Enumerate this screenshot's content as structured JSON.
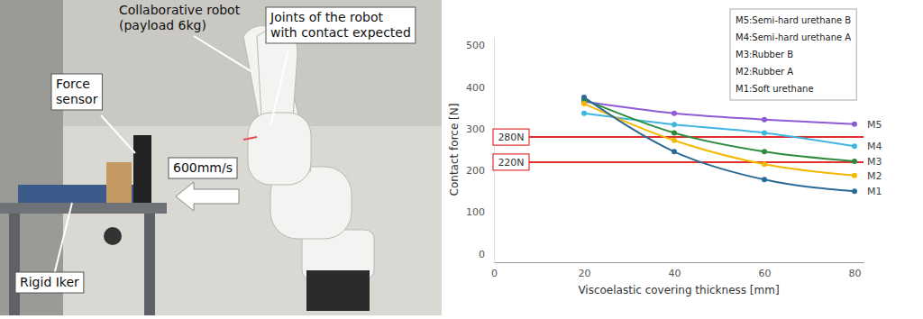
{
  "photo": {
    "annotations": [
      {
        "lines": [
          "Collaborative robot",
          "(payload 6kg)"
        ]
      },
      {
        "lines": [
          "Joints of the robot",
          "with contact expected"
        ]
      },
      {
        "lines": [
          "Force",
          "sensor"
        ]
      },
      {
        "lines": [
          "600mm/s"
        ]
      },
      {
        "lines": [
          "Rigid Iker"
        ]
      }
    ]
  },
  "chart_data": {
    "type": "line",
    "x_label": "Viscoelastic covering thickness [mm]",
    "y_label": "Contact force [N]",
    "x": [
      20,
      40,
      60,
      80
    ],
    "xlim": [
      0,
      82
    ],
    "xticks": [
      0,
      20,
      40,
      60,
      80
    ],
    "ylim": [
      -20,
      520
    ],
    "yticks": [
      0,
      100,
      200,
      300,
      400,
      500
    ],
    "grid": false,
    "legend": "upper right",
    "marker": "circle",
    "line_style": "solid",
    "series": [
      {
        "name": "M5:Semi-hard urethane B",
        "label": "M5",
        "color": "#8e5bd6",
        "values": [
          365,
          337,
          322,
          311
        ]
      },
      {
        "name": "M4:Semi-hard urethane A",
        "label": "M4",
        "color": "#3fb6e0",
        "values": [
          337,
          310,
          290,
          258
        ]
      },
      {
        "name": "M3:Rubber B",
        "label": "M3",
        "color": "#2e8b3e",
        "values": [
          370,
          290,
          245,
          222
        ]
      },
      {
        "name": "M2:Rubber A",
        "label": "M2",
        "color": "#f5b800",
        "values": [
          360,
          272,
          215,
          188
        ]
      },
      {
        "name": "M1:Soft urethane",
        "label": "M1",
        "color": "#2c6a96",
        "values": [
          375,
          245,
          178,
          150
        ]
      }
    ],
    "reference_lines": [
      {
        "value": 280,
        "label": "280N",
        "color": "#e03030"
      },
      {
        "value": 220,
        "label": "220N",
        "color": "#e03030"
      }
    ]
  }
}
